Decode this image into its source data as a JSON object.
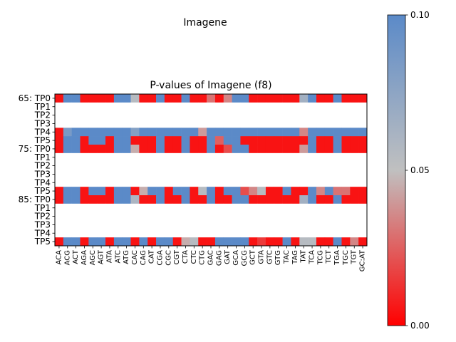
{
  "suptitle": "Imagene",
  "chart_data": {
    "type": "heatmap",
    "title": "P-values of Imagene (f8)",
    "xlabel": "",
    "ylabel": "",
    "columns": [
      "ACA",
      "ACG",
      "ACT",
      "AGA",
      "AGC",
      "AGT",
      "ATA",
      "ATC",
      "ATG",
      "CAC",
      "CAG",
      "CAT",
      "CGA",
      "CGC",
      "CGT",
      "CTA",
      "CTC",
      "CTG",
      "GAC",
      "GAG",
      "GAT",
      "GCA",
      "GCG",
      "GCT",
      "GTA",
      "GTC",
      "GTG",
      "TAC",
      "TAG",
      "TAT",
      "TCA",
      "TCG",
      "TCT",
      "TGA",
      "TGC",
      "TGT",
      "GC:AT"
    ],
    "rows": [
      "65: TP0",
      "TP1",
      "TP2",
      "TP3",
      "TP4",
      "TP5",
      "75: TP0",
      "TP1",
      "TP2",
      "TP3",
      "TP4",
      "TP5",
      "85: TP0",
      "TP1",
      "TP2",
      "TP3",
      "TP4",
      "TP5"
    ],
    "values": [
      [
        0.005,
        0.1,
        0.1,
        0.005,
        0.005,
        0.005,
        0.005,
        0.1,
        0.1,
        0.055,
        0.005,
        0.005,
        0.1,
        0.005,
        0.005,
        0.1,
        0.005,
        0.005,
        0.03,
        0.005,
        0.035,
        0.1,
        0.1,
        0.005,
        0.005,
        0.005,
        0.005,
        0.005,
        0.005,
        0.065,
        0.1,
        0.005,
        0.005,
        0.1,
        0.005,
        0.005,
        0.005
      ],
      [
        null,
        null,
        null,
        null,
        null,
        null,
        null,
        null,
        null,
        null,
        null,
        null,
        null,
        null,
        null,
        null,
        null,
        null,
        null,
        null,
        null,
        null,
        null,
        null,
        null,
        null,
        null,
        null,
        null,
        null,
        null,
        null,
        null,
        null,
        null,
        null,
        null
      ],
      [
        null,
        null,
        null,
        null,
        null,
        null,
        null,
        null,
        null,
        null,
        null,
        null,
        null,
        null,
        null,
        null,
        null,
        null,
        null,
        null,
        null,
        null,
        null,
        null,
        null,
        null,
        null,
        null,
        null,
        null,
        null,
        null,
        null,
        null,
        null,
        null,
        null
      ],
      [
        null,
        null,
        null,
        null,
        null,
        null,
        null,
        null,
        null,
        null,
        null,
        null,
        null,
        null,
        null,
        null,
        null,
        null,
        null,
        null,
        null,
        null,
        null,
        null,
        null,
        null,
        null,
        null,
        null,
        null,
        null,
        null,
        null,
        null,
        null,
        null,
        null
      ],
      [
        0.005,
        0.085,
        0.1,
        0.1,
        0.1,
        0.1,
        0.1,
        0.1,
        0.1,
        0.08,
        0.1,
        0.1,
        0.1,
        0.1,
        0.1,
        0.1,
        0.1,
        0.04,
        0.1,
        0.1,
        0.1,
        0.1,
        0.1,
        0.1,
        0.1,
        0.1,
        0.1,
        0.1,
        0.1,
        0.035,
        0.1,
        0.1,
        0.1,
        0.1,
        0.1,
        0.1,
        0.1
      ],
      [
        0.005,
        0.1,
        0.1,
        0.005,
        0.1,
        0.1,
        0.005,
        0.1,
        0.1,
        0.005,
        0.005,
        0.005,
        0.1,
        0.005,
        0.005,
        0.1,
        0.005,
        0.005,
        0.1,
        0.025,
        0.1,
        0.1,
        0.005,
        0.005,
        0.005,
        0.005,
        0.005,
        0.005,
        0.005,
        0.005,
        0.1,
        0.005,
        0.005,
        0.1,
        0.005,
        0.005,
        0.005
      ],
      [
        0.005,
        0.1,
        0.1,
        0.005,
        0.005,
        0.005,
        0.005,
        0.1,
        0.1,
        0.045,
        0.005,
        0.005,
        0.1,
        0.005,
        0.005,
        0.1,
        0.005,
        0.005,
        0.1,
        0.005,
        0.02,
        0.1,
        0.1,
        0.005,
        0.005,
        0.005,
        0.005,
        0.005,
        0.005,
        0.04,
        0.1,
        0.005,
        0.005,
        0.1,
        0.005,
        0.005,
        0.005
      ],
      [
        null,
        null,
        null,
        null,
        null,
        null,
        null,
        null,
        null,
        null,
        null,
        null,
        null,
        null,
        null,
        null,
        null,
        null,
        null,
        null,
        null,
        null,
        null,
        null,
        null,
        null,
        null,
        null,
        null,
        null,
        null,
        null,
        null,
        null,
        null,
        null,
        null
      ],
      [
        null,
        null,
        null,
        null,
        null,
        null,
        null,
        null,
        null,
        null,
        null,
        null,
        null,
        null,
        null,
        null,
        null,
        null,
        null,
        null,
        null,
        null,
        null,
        null,
        null,
        null,
        null,
        null,
        null,
        null,
        null,
        null,
        null,
        null,
        null,
        null,
        null
      ],
      [
        null,
        null,
        null,
        null,
        null,
        null,
        null,
        null,
        null,
        null,
        null,
        null,
        null,
        null,
        null,
        null,
        null,
        null,
        null,
        null,
        null,
        null,
        null,
        null,
        null,
        null,
        null,
        null,
        null,
        null,
        null,
        null,
        null,
        null,
        null,
        null,
        null
      ],
      [
        null,
        null,
        null,
        null,
        null,
        null,
        null,
        null,
        null,
        null,
        null,
        null,
        null,
        null,
        null,
        null,
        null,
        null,
        null,
        null,
        null,
        null,
        null,
        null,
        null,
        null,
        null,
        null,
        null,
        null,
        null,
        null,
        null,
        null,
        null,
        null,
        null
      ],
      [
        0.005,
        0.1,
        0.1,
        0.005,
        0.1,
        0.1,
        0.005,
        0.1,
        0.1,
        0.005,
        0.045,
        0.1,
        0.1,
        0.005,
        0.1,
        0.1,
        0.005,
        0.055,
        0.1,
        0.005,
        0.1,
        0.1,
        0.02,
        0.035,
        0.055,
        0.005,
        0.005,
        0.1,
        0.005,
        0.005,
        0.1,
        0.035,
        0.1,
        0.03,
        0.03,
        0.005,
        0.005
      ],
      [
        0.005,
        0.1,
        0.1,
        0.005,
        0.005,
        0.005,
        0.005,
        0.1,
        0.1,
        0.06,
        0.005,
        0.005,
        0.1,
        0.005,
        0.005,
        0.1,
        0.005,
        0.005,
        0.1,
        0.005,
        0.005,
        0.1,
        0.1,
        0.005,
        0.005,
        0.005,
        0.005,
        0.005,
        0.005,
        0.065,
        0.1,
        0.005,
        0.005,
        0.1,
        0.005,
        0.005,
        0.005
      ],
      [
        null,
        null,
        null,
        null,
        null,
        null,
        null,
        null,
        null,
        null,
        null,
        null,
        null,
        null,
        null,
        null,
        null,
        null,
        null,
        null,
        null,
        null,
        null,
        null,
        null,
        null,
        null,
        null,
        null,
        null,
        null,
        null,
        null,
        null,
        null,
        null,
        null
      ],
      [
        null,
        null,
        null,
        null,
        null,
        null,
        null,
        null,
        null,
        null,
        null,
        null,
        null,
        null,
        null,
        null,
        null,
        null,
        null,
        null,
        null,
        null,
        null,
        null,
        null,
        null,
        null,
        null,
        null,
        null,
        null,
        null,
        null,
        null,
        null,
        null,
        null
      ],
      [
        null,
        null,
        null,
        null,
        null,
        null,
        null,
        null,
        null,
        null,
        null,
        null,
        null,
        null,
        null,
        null,
        null,
        null,
        null,
        null,
        null,
        null,
        null,
        null,
        null,
        null,
        null,
        null,
        null,
        null,
        null,
        null,
        null,
        null,
        null,
        null,
        null
      ],
      [
        null,
        null,
        null,
        null,
        null,
        null,
        null,
        null,
        null,
        null,
        null,
        null,
        null,
        null,
        null,
        null,
        null,
        null,
        null,
        null,
        null,
        null,
        null,
        null,
        null,
        null,
        null,
        null,
        null,
        null,
        null,
        null,
        null,
        null,
        null,
        null,
        null
      ],
      [
        0.005,
        0.1,
        0.1,
        0.005,
        0.1,
        0.1,
        0.005,
        0.1,
        0.1,
        0.005,
        0.1,
        0.005,
        0.1,
        0.1,
        0.005,
        0.045,
        0.055,
        0.005,
        0.005,
        0.1,
        0.1,
        0.1,
        0.1,
        0.005,
        0.015,
        0.005,
        0.005,
        0.1,
        0.005,
        0.055,
        0.055,
        0.005,
        0.005,
        0.1,
        0.005,
        0.035,
        0.005
      ]
    ],
    "colorbar": {
      "min": 0.0,
      "max": 0.1,
      "ticks": [
        "0.00",
        "0.05",
        "0.10"
      ],
      "colors": [
        "#ff0000",
        "#c0c0c0",
        "#5b8ac8"
      ]
    },
    "grid": false,
    "missing_color": "#ffffff"
  }
}
